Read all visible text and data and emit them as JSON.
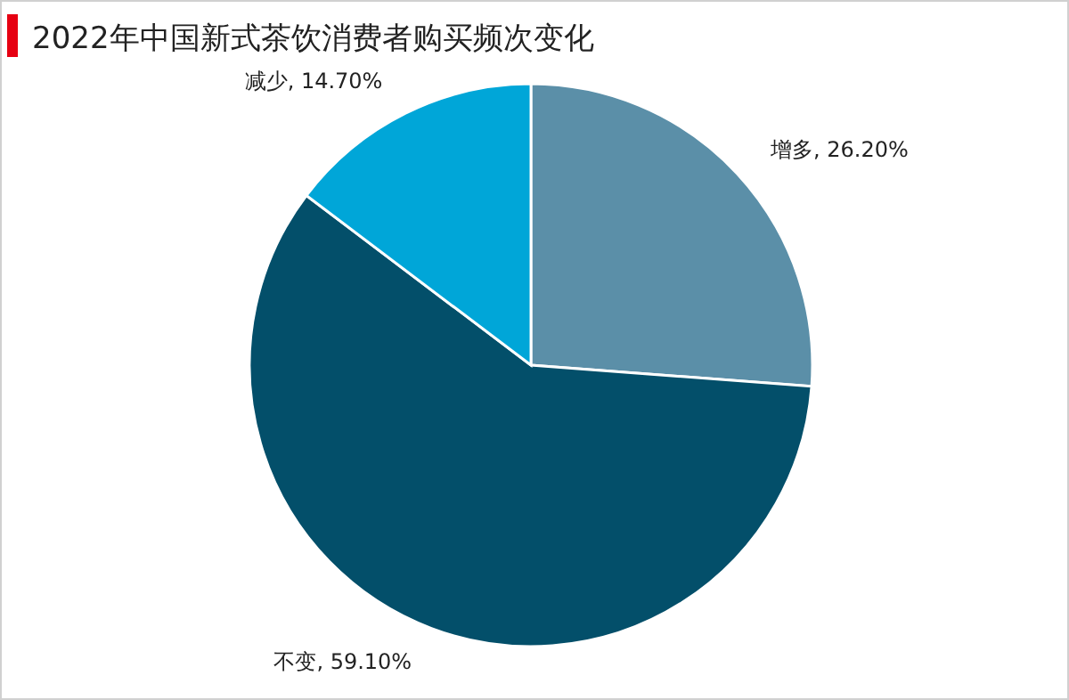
{
  "chart_data": {
    "type": "pie",
    "title": "2022年中国新式茶饮消费者购买频次变化",
    "categories": [
      "增多",
      "不变",
      "减少"
    ],
    "values": [
      26.2,
      59.1,
      14.7
    ],
    "value_labels": [
      "26.20%",
      "59.10%",
      "14.70%"
    ],
    "colors": [
      "#5b8fa8",
      "#034f6a",
      "#00a6d8"
    ]
  }
}
